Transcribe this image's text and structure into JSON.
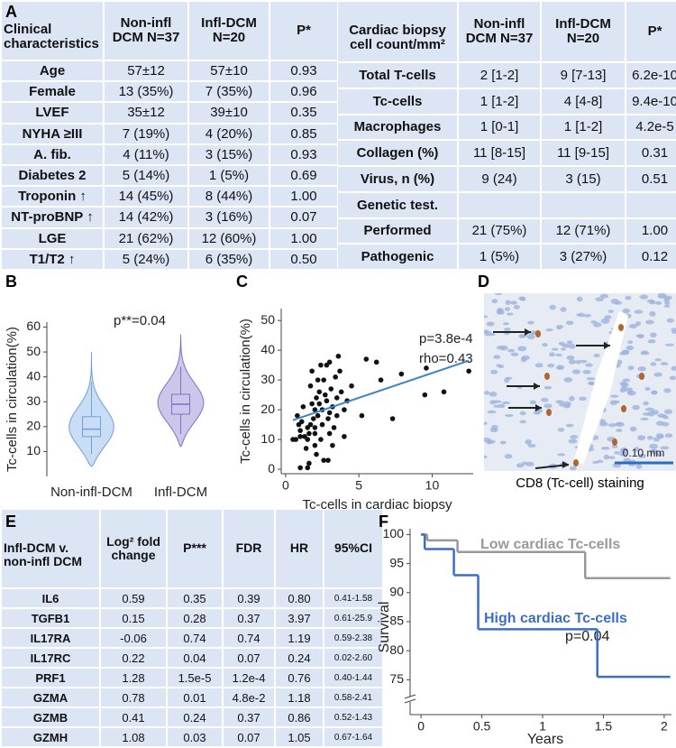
{
  "panels": [
    "A",
    "B",
    "C",
    "D",
    "E",
    "F"
  ],
  "table_a": {
    "header": [
      "Clinical characteristics",
      "Non-infl DCM N=37",
      "Infl-DCM N=20",
      "P*"
    ],
    "rows": [
      [
        "Age",
        "57±12",
        "57±10",
        "0.93"
      ],
      [
        "Female",
        "13 (35%)",
        "7 (35%)",
        "0.96"
      ],
      [
        "LVEF",
        "35±12",
        "39±10",
        "0.35"
      ],
      [
        "NYHA ≥III",
        "7 (19%)",
        "4 (20%)",
        "0.85"
      ],
      [
        "A. fib.",
        "4 (11%)",
        "3 (15%)",
        "0.93"
      ],
      [
        "Diabetes 2",
        "5 (14%)",
        "1 (5%)",
        "0.69"
      ],
      [
        "Troponin ↑",
        "14 (45%)",
        "8 (44%)",
        "1.00"
      ],
      [
        "NT-proBNP ↑",
        "14 (42%)",
        "3 (16%)",
        "0.07"
      ],
      [
        "LGE",
        "21 (62%)",
        "12 (60%)",
        "1.00"
      ],
      [
        "T1/T2 ↑",
        "5 (24%)",
        "6 (35%)",
        "0.50"
      ]
    ]
  },
  "table_a2": {
    "header": [
      "Cardiac biopsy cell count/mm²",
      "Non-infl DCM N=37",
      "Infl-DCM N=20",
      "P*"
    ],
    "rows": [
      [
        "Total T-cells",
        "2 [1-2]",
        "9 [7-13]",
        "6.2e-10"
      ],
      [
        "Tc-cells",
        "1 [1-2]",
        "4 [4-8]",
        "9.4e-10"
      ],
      [
        "Macrophages",
        "1 [0-1]",
        "1 [1-2]",
        "4.2e-5"
      ],
      [
        "Collagen (%)",
        "11 [8-15]",
        "11 [9-15]",
        "0.31"
      ],
      [
        "Virus, n (%)",
        "9 (24)",
        "3 (15)",
        "0.51"
      ],
      [
        "Genetic test."
      ],
      [
        "Performed",
        "21 (75%)",
        "12 (71%)",
        "1.00"
      ],
      [
        "Pathogenic",
        "1 (5%)",
        "3 (27%)",
        "0.12"
      ]
    ]
  },
  "table_e": {
    "header": [
      "Infl-DCM v. non-infl DCM",
      "Log² fold change",
      "P***",
      "FDR",
      "HR",
      "95%CI"
    ],
    "rows": [
      [
        "IL6",
        "0.59",
        "0.35",
        "0.39",
        "0.80",
        "0.41-1.58"
      ],
      [
        "TGFB1",
        "0.15",
        "0.28",
        "0.37",
        "3.97",
        "0.61-25.9"
      ],
      [
        "IL17RA",
        "-0.06",
        "0.74",
        "0.74",
        "1.19",
        "0.59-2.38"
      ],
      [
        "IL17RC",
        "0.22",
        "0.04",
        "0.07",
        "0.24",
        "0.02-2.60"
      ],
      [
        "PRF1",
        "1.28",
        "1.5e-5",
        "1.2e-4",
        "0.76",
        "0.40-1.44"
      ],
      [
        "GZMA",
        "0.78",
        "0.01",
        "4.8e-2",
        "1.18",
        "0.58-2.41"
      ],
      [
        "GZMB",
        "0.41",
        "0.24",
        "0.37",
        "0.86",
        "0.52-1.43"
      ],
      [
        "GZMH",
        "1.08",
        "0.03",
        "0.07",
        "1.05",
        "0.67-1.64"
      ]
    ]
  },
  "image_d": {
    "scale_label": "0.10 mm",
    "caption": "CD8 (Tc-cell) staining"
  },
  "chart_data": [
    {
      "type": "violin",
      "ylabel": "Tc-cells in circulation(%)",
      "annotation": "p**=0.04",
      "categories": [
        "Non-infl-DCM",
        "Infl-DCM"
      ],
      "boxes": [
        {
          "min": 4,
          "whisker_low": 9,
          "q1": 16,
          "median": 19,
          "q3": 24,
          "whisker_high": 38,
          "max": 50,
          "fill": "#c9ddf5",
          "stroke": "#6f9fdc"
        },
        {
          "min": 12,
          "whisker_low": 17,
          "q1": 25,
          "median": 29,
          "q3": 33,
          "whisker_high": 44,
          "max": 57,
          "fill": "#cbc6ea",
          "stroke": "#7d72c8"
        }
      ],
      "ylim": [
        0,
        62
      ],
      "yticks": [
        10,
        20,
        30,
        40,
        50,
        60
      ]
    },
    {
      "type": "scatter",
      "xlabel": "Tc-cells in cardiac biopsy",
      "ylabel": "Tc-cells in circulation(%)",
      "annotations": [
        "p=3.8e-4",
        "rho=0.43"
      ],
      "color": "#111111",
      "x": [
        0.5,
        0.7,
        1,
        1.5,
        1,
        1,
        1.2,
        1.3,
        1.5,
        1.5,
        1.6,
        1.7,
        1.7,
        1.8,
        1.9,
        2,
        2,
        2,
        2,
        2.1,
        2.1,
        2.2,
        2.3,
        2.3,
        2.4,
        2.5,
        2.5,
        2.6,
        2.6,
        2.7,
        2.8,
        2.8,
        2.9,
        3,
        3,
        3,
        3.1,
        3.2,
        3.2,
        3.3,
        3.4,
        3.5,
        3.5,
        3.6,
        3.7,
        3.8,
        4,
        4,
        4.2,
        0.8,
        0.9,
        1.1,
        1.4,
        1.8,
        2.2,
        2.4,
        5.2,
        5.5,
        6.2,
        6.5,
        7.3,
        7.9,
        9.6,
        9.5,
        10.8,
        12.5,
        4.5,
        1.6,
        2.9
      ],
      "values": [
        10,
        10,
        0.5,
        0.5,
        11,
        13,
        21,
        11,
        14,
        10,
        12,
        15,
        28,
        33,
        17,
        20,
        12,
        8,
        14,
        24,
        5,
        18,
        22,
        26,
        10,
        15,
        20,
        30,
        3,
        25,
        23,
        35,
        17,
        19,
        12,
        36,
        27,
        21,
        8,
        14,
        31,
        24,
        18,
        38,
        33,
        26,
        20,
        11,
        23,
        18,
        15,
        16,
        7,
        22,
        30,
        35,
        18,
        37,
        36,
        30,
        17,
        32,
        34,
        25,
        26,
        33,
        28,
        2,
        3
      ],
      "trendline": {
        "color": "#3a86c8",
        "x": [
          0.5,
          12.5
        ],
        "values": [
          16.5,
          36.5
        ]
      },
      "xlim": [
        -0.3,
        12.8
      ],
      "xticks": [
        0,
        5,
        10
      ],
      "ylim": [
        -1.5,
        54
      ],
      "yticks": [
        0,
        10,
        20,
        30,
        40,
        50
      ]
    },
    {
      "type": "step",
      "xlabel": "Years",
      "ylabel": "Survival",
      "annotation": "p=0.04",
      "series": [
        {
          "name": "Low cardiac Tc-cells",
          "color": "#999999",
          "x": [
            0,
            0.05,
            0.3,
            1.35,
            2.05
          ],
          "values": [
            100,
            99,
            97,
            92.5,
            92.5
          ]
        },
        {
          "name": "High cardiac Tc-cells",
          "color": "#3b6fc0",
          "x": [
            0,
            0.03,
            0.27,
            0.47,
            1.45,
            2.05
          ],
          "values": [
            100,
            97.5,
            93,
            83.7,
            75.5,
            75.5
          ]
        }
      ],
      "xlim": [
        -0.09,
        2.06
      ],
      "xticks": [
        0,
        0.5,
        1,
        1.5,
        2
      ],
      "ylim": [
        69,
        101
      ],
      "yticks": [
        75,
        80,
        85,
        90,
        95,
        100
      ]
    }
  ]
}
